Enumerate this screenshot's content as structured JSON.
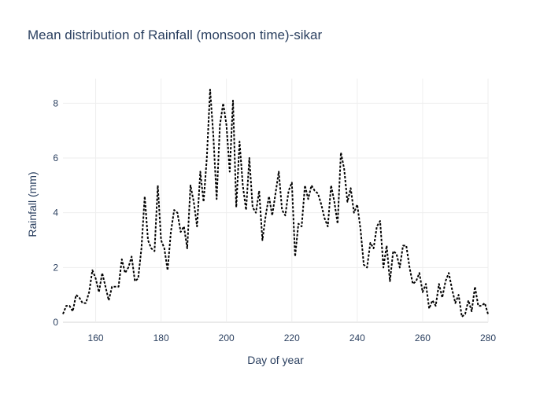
{
  "chart_data": {
    "type": "line",
    "title": "Mean distribution of Rainfall (monsoon time)-sikar",
    "xlabel": "Day of year",
    "ylabel": "Rainfall (mm)",
    "xlim": [
      150,
      280
    ],
    "ylim": [
      0,
      8.9
    ],
    "x_ticks": [
      160,
      180,
      200,
      220,
      240,
      260,
      280
    ],
    "y_ticks": [
      0,
      2,
      4,
      6,
      8
    ],
    "grid": true,
    "line_style": "dotted",
    "line_color": "#000000",
    "series": [
      {
        "x": [
          150,
          151,
          152,
          153,
          154,
          155,
          156,
          157,
          158,
          159,
          160,
          161,
          162,
          163,
          164,
          165,
          166,
          167,
          168,
          169,
          170,
          171,
          172,
          173,
          174,
          175,
          176,
          177,
          178,
          179,
          180,
          181,
          182,
          183,
          184,
          185,
          186,
          187,
          188,
          189,
          190,
          191,
          192,
          193,
          194,
          195,
          196,
          197,
          198,
          199,
          200,
          201,
          202,
          203,
          204,
          205,
          206,
          207,
          208,
          209,
          210,
          211,
          212,
          213,
          214,
          215,
          216,
          217,
          218,
          219,
          220,
          221,
          222,
          223,
          224,
          225,
          226,
          227,
          228,
          229,
          230,
          231,
          232,
          233,
          234,
          235,
          236,
          237,
          238,
          239,
          240,
          241,
          242,
          243,
          244,
          245,
          246,
          247,
          248,
          249,
          250,
          251,
          252,
          253,
          254,
          255,
          256,
          257,
          258,
          259,
          260,
          261,
          262,
          263,
          264,
          265,
          266,
          267,
          268,
          269,
          270,
          271,
          272,
          273,
          274,
          275,
          276,
          277,
          278,
          279,
          280
        ],
        "values": [
          0.3,
          0.6,
          0.6,
          0.4,
          1.0,
          0.9,
          0.7,
          0.7,
          1.1,
          1.9,
          1.6,
          1.1,
          1.8,
          1.3,
          0.8,
          1.3,
          1.3,
          1.3,
          2.3,
          1.8,
          2.0,
          2.4,
          1.5,
          1.6,
          2.7,
          4.6,
          3.0,
          2.7,
          2.6,
          5.0,
          3.0,
          2.7,
          1.9,
          3.3,
          4.1,
          4.0,
          3.3,
          3.5,
          2.7,
          5.0,
          4.4,
          3.5,
          5.5,
          4.4,
          6.0,
          8.5,
          6.8,
          4.5,
          7.2,
          8.0,
          7.2,
          5.5,
          8.1,
          4.2,
          6.6,
          5.0,
          4.1,
          6.0,
          4.2,
          4.0,
          4.8,
          3.0,
          3.9,
          4.6,
          3.9,
          4.7,
          5.5,
          4.1,
          3.9,
          4.8,
          5.1,
          2.4,
          3.6,
          3.5,
          5.0,
          4.5,
          5.0,
          4.8,
          4.7,
          4.3,
          3.8,
          3.5,
          5.0,
          4.4,
          3.6,
          6.2,
          5.6,
          4.4,
          4.9,
          4.0,
          4.3,
          3.4,
          2.1,
          2.0,
          2.9,
          2.7,
          3.5,
          3.7,
          2.0,
          2.8,
          1.5,
          2.6,
          2.5,
          2.0,
          2.8,
          2.8,
          2.0,
          1.4,
          1.5,
          1.8,
          1.1,
          1.4,
          0.5,
          0.8,
          0.6,
          1.4,
          0.9,
          1.5,
          1.8,
          1.2,
          0.7,
          1.0,
          0.2,
          0.3,
          0.8,
          0.4,
          1.3,
          0.6,
          0.6,
          0.7,
          0.3
        ]
      }
    ]
  }
}
